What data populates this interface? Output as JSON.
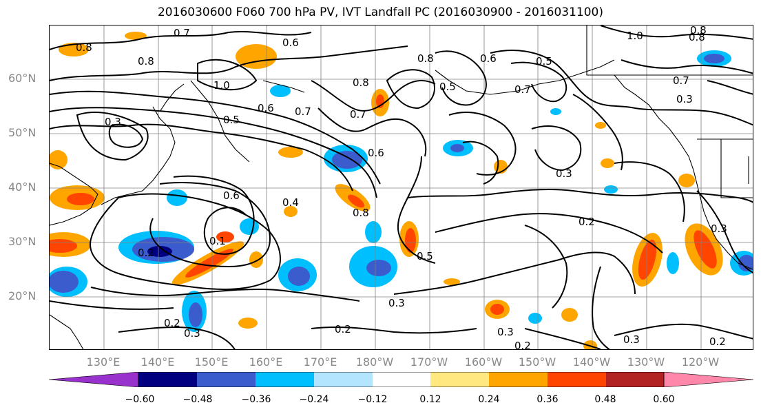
{
  "title": "2016030600 F060 700 hPa PV, IVT Landfall PC (2016030900 - 2016031100)",
  "lat_labels": [
    "60°N",
    "50°N",
    "40°N",
    "30°N",
    "20°N"
  ],
  "lon_labels": [
    "130°E",
    "140°E",
    "150°E",
    "160°E",
    "170°E",
    "180°W",
    "170°W",
    "160°W",
    "150°W",
    "140°W",
    "130°W",
    "120°W"
  ],
  "colorbar": {
    "ticks": [
      "−0.60",
      "−0.48",
      "−0.36",
      "−0.24",
      "−0.12",
      "0.12",
      "0.24",
      "0.36",
      "0.48",
      "0.60"
    ],
    "colors": [
      "#9932cc",
      "#000080",
      "#3a5ccc",
      "#00bfff",
      "#b3e5ff",
      "#ffffff",
      "#ffe87f",
      "#ffa500",
      "#ff4500",
      "#b22222",
      "#ff88aa"
    ]
  },
  "contour_labels": [
    "0.8",
    "0.7",
    "0.8",
    "0.6",
    "1.0",
    "0.8",
    "0.6",
    "0.5",
    "0.8",
    "0.7",
    "0.5",
    "0.7",
    "1.0",
    "0.8",
    "0.8",
    "0.7",
    "0.3",
    "0.3",
    "0.5",
    "0.6",
    "0.7",
    "0.6",
    "0.3",
    "0.4",
    "0.6",
    "0.8",
    "0.2",
    "0.1",
    "0.2",
    "0.3",
    "0.5",
    "0.3",
    "0.2",
    "0.2",
    "0.3",
    "0.3",
    "0.2",
    "0.3",
    "0.2"
  ],
  "colors": {
    "contour": "#000000",
    "grid": "#808080",
    "coast": "#000000"
  }
}
